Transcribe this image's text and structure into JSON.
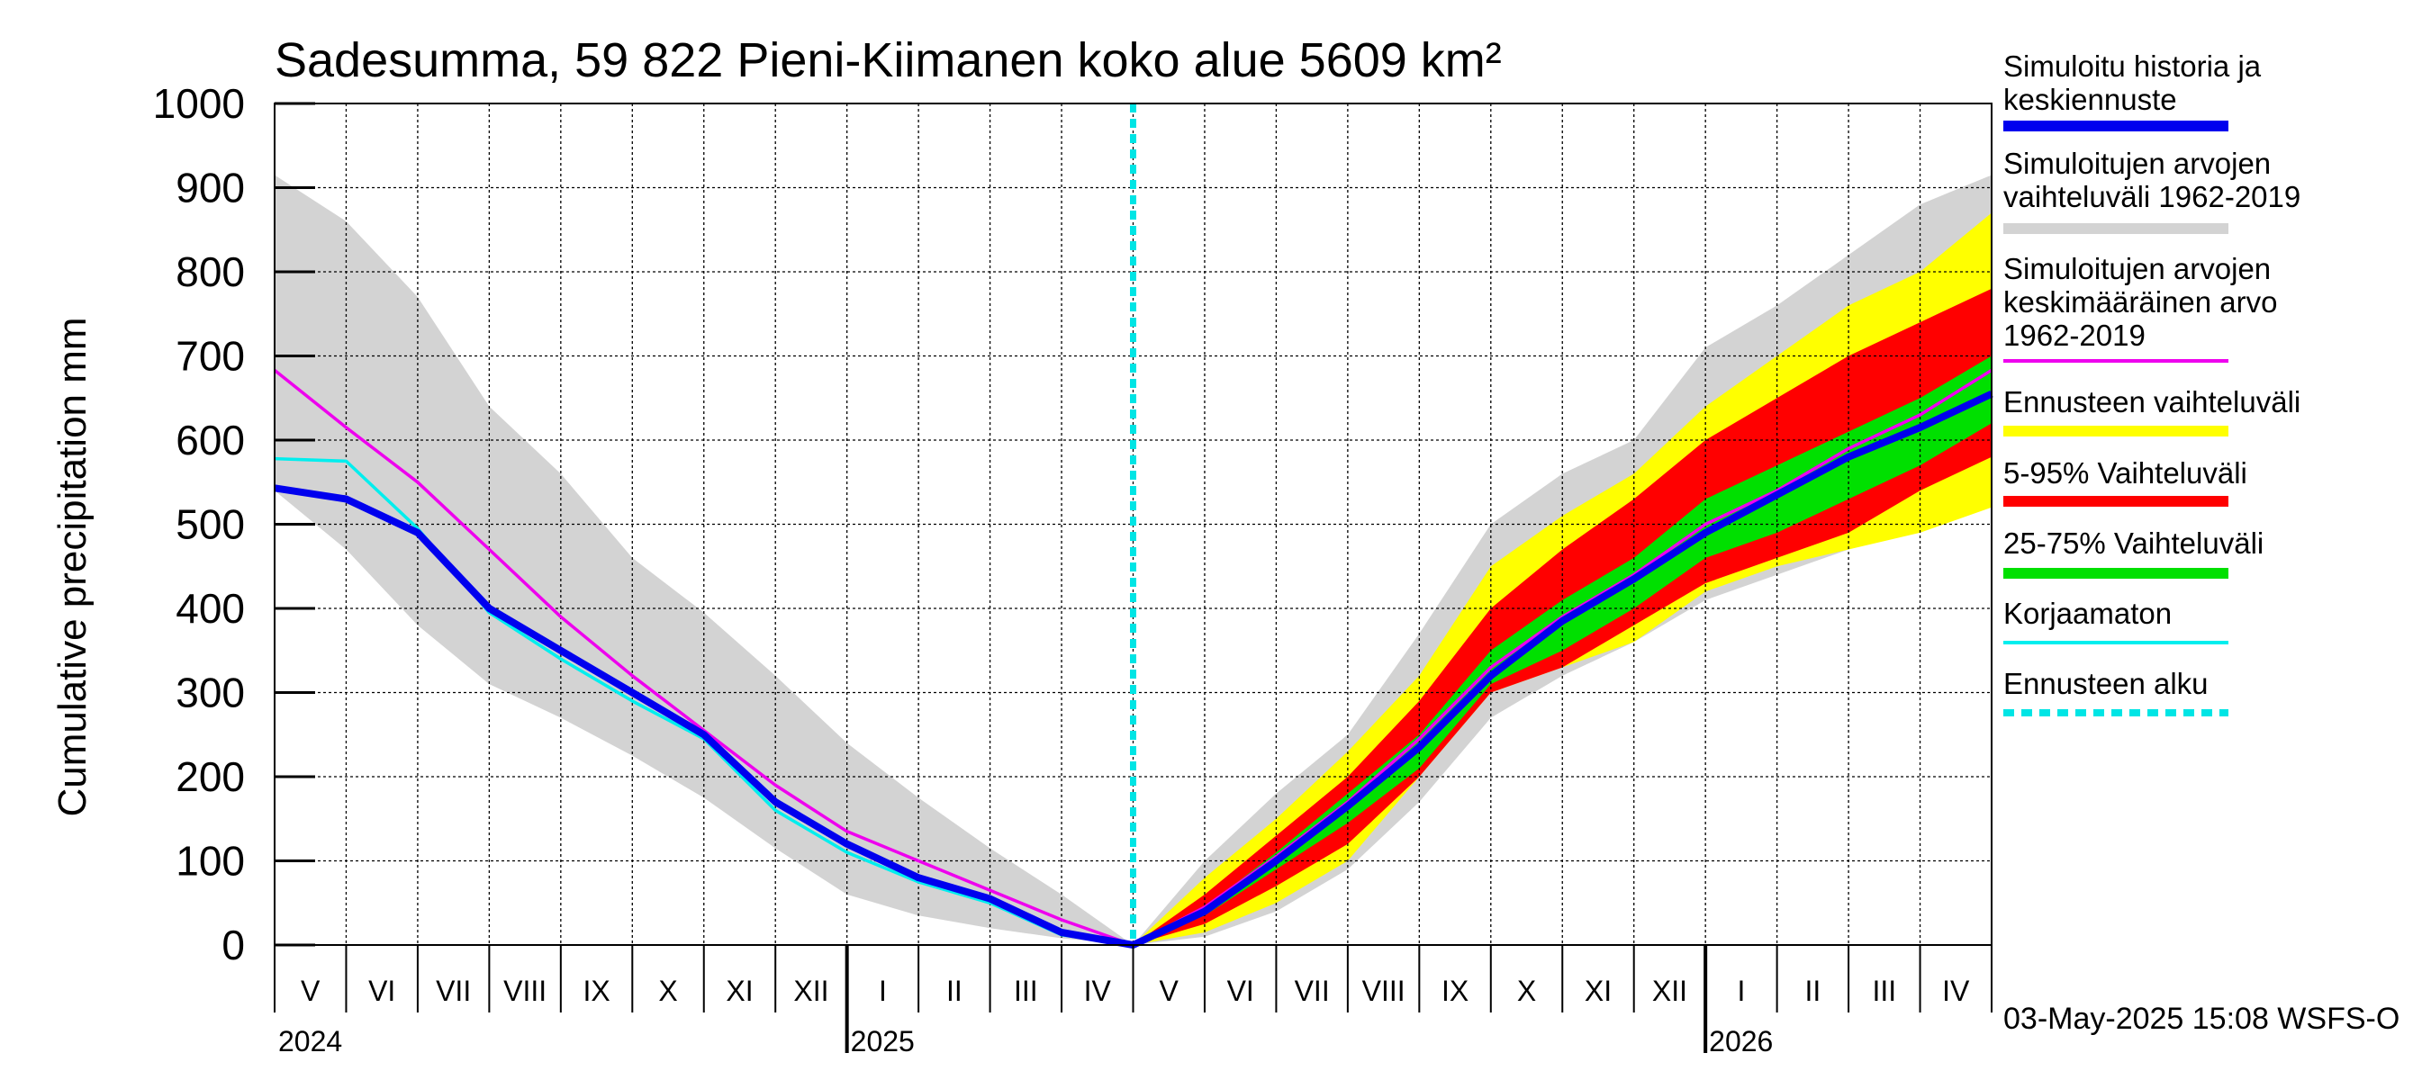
{
  "chart_data": {
    "type": "area",
    "title": "Sadesumma, 59 822 Pieni-Kiimanen koko alue 5609 km²",
    "ylabel": "Cumulative precipitation   mm",
    "ylim": [
      0,
      1000
    ],
    "yticks": [
      "0",
      "100",
      "200",
      "300",
      "400",
      "500",
      "600",
      "700",
      "800",
      "900",
      "1000"
    ],
    "month_labels": [
      "V",
      "VI",
      "VII",
      "VIII",
      "IX",
      "X",
      "XI",
      "XII",
      "I",
      "II",
      "III",
      "IV",
      "V",
      "VI",
      "VII",
      "VIII",
      "IX",
      "X",
      "XI",
      "XII",
      "I",
      "II",
      "III",
      "IV"
    ],
    "year_labels": [
      "2024",
      "2025",
      "2026"
    ],
    "forecast_start_month_index": 12,
    "timestamp": "03-May-2025 15:08 WSFS-O",
    "colors": {
      "hist_range": "#d3d3d3",
      "forecast_range": "#ffff00",
      "p5_95": "#ff0000",
      "p25_75": "#00e000",
      "simulated": "#0000ee",
      "mean": "#ee00ee",
      "uncorrected": "#00eeee",
      "forecast_start": "#00e5e5"
    },
    "legend": [
      {
        "label": "Simuloitu historia ja keskiennuste",
        "color": "#0000ee",
        "style": "thick"
      },
      {
        "label": "Simuloitujen arvojen vaihteluväli 1962-2019",
        "color": "#d3d3d3",
        "style": "thick"
      },
      {
        "label": "Simuloitujen arvojen keskimääräinen arvo 1962-2019",
        "color": "#ee00ee",
        "style": "thin"
      },
      {
        "label": "Ennusteen vaihteluväli",
        "color": "#ffff00",
        "style": "thick"
      },
      {
        "label": "5-95% Vaihteluväli",
        "color": "#ff0000",
        "style": "thick"
      },
      {
        "label": "25-75% Vaihteluväli",
        "color": "#00e000",
        "style": "thick"
      },
      {
        "label": "Korjaamaton",
        "color": "#00eeee",
        "style": "thin"
      },
      {
        "label": "Ennusteen alku",
        "color": "#00e5e5",
        "style": "dashed"
      }
    ],
    "series": [
      {
        "name": "hist_max",
        "x": [
          0,
          1,
          2,
          3,
          4,
          5,
          6,
          7,
          8,
          9,
          10,
          11,
          12
        ],
        "values": [
          915,
          860,
          770,
          640,
          560,
          460,
          395,
          320,
          240,
          175,
          115,
          60,
          0
        ]
      },
      {
        "name": "hist_min",
        "x": [
          0,
          1,
          2,
          3,
          4,
          5,
          6,
          7,
          8,
          9,
          10,
          11,
          12
        ],
        "values": [
          540,
          470,
          380,
          310,
          270,
          225,
          175,
          115,
          60,
          35,
          20,
          8,
          0
        ]
      },
      {
        "name": "mean_hist",
        "x": [
          0,
          1,
          2,
          3,
          4,
          5,
          6,
          7,
          8,
          9,
          10,
          11,
          12
        ],
        "values": [
          683,
          615,
          550,
          470,
          390,
          320,
          255,
          190,
          135,
          100,
          65,
          30,
          0
        ]
      },
      {
        "name": "simulated_hist",
        "x": [
          0,
          1,
          2,
          3,
          4,
          5,
          6,
          7,
          8,
          9,
          10,
          11,
          12
        ],
        "values": [
          543,
          530,
          490,
          400,
          350,
          300,
          250,
          170,
          120,
          80,
          55,
          15,
          0
        ]
      },
      {
        "name": "uncorrected_hist",
        "x": [
          0,
          1,
          2,
          3,
          4,
          5,
          6,
          7,
          8,
          9,
          10,
          11,
          12
        ],
        "values": [
          578,
          575,
          495,
          395,
          340,
          290,
          245,
          160,
          110,
          75,
          50,
          12,
          0
        ]
      },
      {
        "name": "hist_max_fc",
        "x": [
          12,
          13,
          14,
          15,
          16,
          17,
          18,
          19,
          20,
          21,
          22,
          23,
          24
        ],
        "values": [
          0,
          100,
          180,
          250,
          370,
          500,
          560,
          600,
          710,
          760,
          820,
          880,
          915
        ]
      },
      {
        "name": "hist_min_fc",
        "x": [
          12,
          13,
          14,
          15,
          16,
          17,
          18,
          19,
          20,
          21,
          22,
          23,
          24
        ],
        "values": [
          0,
          10,
          40,
          90,
          170,
          270,
          320,
          360,
          410,
          440,
          470,
          510,
          535
        ]
      },
      {
        "name": "forecast_max",
        "x": [
          12,
          13,
          14,
          15,
          16,
          17,
          18,
          19,
          20,
          21,
          22,
          23,
          24
        ],
        "values": [
          0,
          80,
          150,
          230,
          320,
          450,
          510,
          560,
          640,
          700,
          760,
          800,
          870
        ]
      },
      {
        "name": "forecast_min",
        "x": [
          12,
          13,
          14,
          15,
          16,
          17,
          18,
          19,
          20,
          21,
          22,
          23,
          24
        ],
        "values": [
          0,
          15,
          50,
          100,
          200,
          300,
          330,
          360,
          420,
          450,
          470,
          490,
          520
        ]
      },
      {
        "name": "p95",
        "x": [
          12,
          13,
          14,
          15,
          16,
          17,
          18,
          19,
          20,
          21,
          22,
          23,
          24
        ],
        "values": [
          0,
          60,
          130,
          200,
          290,
          400,
          470,
          530,
          600,
          650,
          700,
          740,
          780
        ]
      },
      {
        "name": "p5",
        "x": [
          12,
          13,
          14,
          15,
          16,
          17,
          18,
          19,
          20,
          21,
          22,
          23,
          24
        ],
        "values": [
          0,
          25,
          70,
          120,
          200,
          300,
          330,
          380,
          430,
          460,
          490,
          540,
          580
        ]
      },
      {
        "name": "p75",
        "x": [
          12,
          13,
          14,
          15,
          16,
          17,
          18,
          19,
          20,
          21,
          22,
          23,
          24
        ],
        "values": [
          0,
          45,
          110,
          180,
          250,
          350,
          410,
          460,
          530,
          570,
          610,
          650,
          700
        ]
      },
      {
        "name": "p25",
        "x": [
          12,
          13,
          14,
          15,
          16,
          17,
          18,
          19,
          20,
          21,
          22,
          23,
          24
        ],
        "values": [
          0,
          35,
          90,
          145,
          210,
          310,
          350,
          400,
          460,
          490,
          530,
          570,
          620
        ]
      },
      {
        "name": "simulated_fc",
        "x": [
          12,
          13,
          14,
          15,
          16,
          17,
          18,
          19,
          20,
          21,
          22,
          23,
          24
        ],
        "values": [
          0,
          40,
          100,
          165,
          235,
          320,
          385,
          435,
          490,
          535,
          580,
          615,
          655
        ]
      },
      {
        "name": "mean_fc",
        "x": [
          12,
          13,
          14,
          15,
          16,
          17,
          18,
          19,
          20,
          21,
          22,
          23,
          24
        ],
        "values": [
          0,
          45,
          105,
          170,
          245,
          330,
          390,
          440,
          500,
          540,
          590,
          630,
          683
        ]
      }
    ]
  }
}
